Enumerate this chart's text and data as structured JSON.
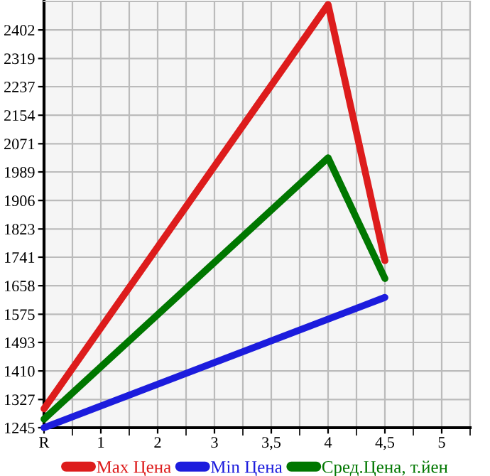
{
  "chart_data": {
    "type": "line",
    "categories": [
      "R",
      "1",
      "2",
      "3",
      "3,5",
      "4",
      "4,5",
      "5"
    ],
    "series": [
      {
        "name": "Max Цена",
        "color": "#dd1c1c",
        "values": [
          1300,
          null,
          null,
          null,
          null,
          2476,
          1731,
          null
        ]
      },
      {
        "name": "Min Цена",
        "color": "#1c1cdd",
        "values": [
          1245,
          null,
          null,
          null,
          null,
          null,
          1624,
          null
        ]
      },
      {
        "name": "Сред.Цена, т.йен",
        "color": "#007700",
        "values": [
          1270,
          null,
          null,
          null,
          null,
          2030,
          1679,
          null
        ]
      }
    ],
    "ylim": [
      1245,
      2485
    ],
    "yticks": [
      1245,
      1327,
      1410,
      1493,
      1575,
      1658,
      1741,
      1823,
      1906,
      1989,
      2071,
      2154,
      2237,
      2319,
      2402
    ],
    "grid": true,
    "legend": "bottom",
    "marker": "none",
    "line_style": "solid"
  }
}
